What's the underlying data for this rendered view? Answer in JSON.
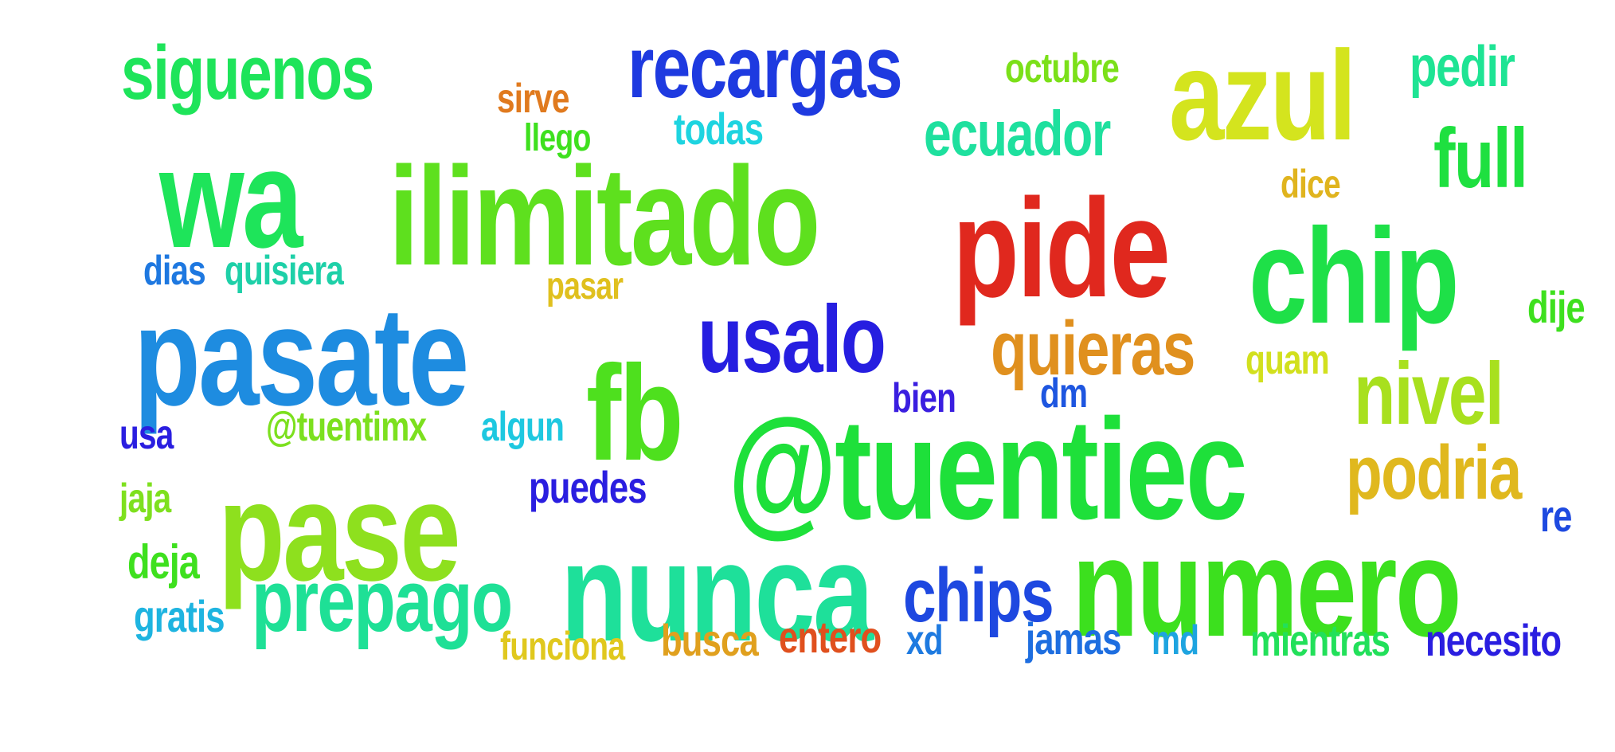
{
  "words": [
    {
      "id": "siguenos",
      "text": "siguenos",
      "color": "#1ee45a"
    },
    {
      "id": "recargas",
      "text": "recargas",
      "color": "#1e3ae0"
    },
    {
      "id": "octubre",
      "text": "octubre",
      "color": "#7be019"
    },
    {
      "id": "azul",
      "text": "azul",
      "color": "#d4e41e"
    },
    {
      "id": "pedir",
      "text": "pedir",
      "color": "#1ee494"
    },
    {
      "id": "sirve",
      "text": "sirve",
      "color": "#e07a1e"
    },
    {
      "id": "llego",
      "text": "llego",
      "color": "#3ee01e"
    },
    {
      "id": "todas",
      "text": "todas",
      "color": "#1ed4e0"
    },
    {
      "id": "ecuador",
      "text": "ecuador",
      "color": "#1ee09e"
    },
    {
      "id": "full",
      "text": "full",
      "color": "#1ee040"
    },
    {
      "id": "wa",
      "text": "wa",
      "color": "#1ee45a"
    },
    {
      "id": "ilimitado",
      "text": "ilimitado",
      "color": "#5ee01e"
    },
    {
      "id": "dice",
      "text": "dice",
      "color": "#e0b41e"
    },
    {
      "id": "pide",
      "text": "pide",
      "color": "#e0281e"
    },
    {
      "id": "chip",
      "text": "chip",
      "color": "#1ee048"
    },
    {
      "id": "dias",
      "text": "dias",
      "color": "#1e78e0"
    },
    {
      "id": "quisiera",
      "text": "quisiera",
      "color": "#1ed0a8"
    },
    {
      "id": "pasar",
      "text": "pasar",
      "color": "#e0c01e"
    },
    {
      "id": "dije",
      "text": "dije",
      "color": "#3ee01e"
    },
    {
      "id": "pasate",
      "text": "pasate",
      "color": "#1e8ce0"
    },
    {
      "id": "usalo",
      "text": "usalo",
      "color": "#261ee0"
    },
    {
      "id": "quieras",
      "text": "quieras",
      "color": "#e0901e"
    },
    {
      "id": "quam",
      "text": "quam",
      "color": "#d2e01e"
    },
    {
      "id": "nivel",
      "text": "nivel",
      "color": "#a8e01e"
    },
    {
      "id": "fb",
      "text": "fb",
      "color": "#4ee01e"
    },
    {
      "id": "bien",
      "text": "bien",
      "color": "#3a1ee0"
    },
    {
      "id": "dm",
      "text": "dm",
      "color": "#1e56e0"
    },
    {
      "id": "usa",
      "text": "usa",
      "color": "#2a1ee0"
    },
    {
      "id": "tuentimx",
      "text": "@tuentimx",
      "color": "#7ce01e"
    },
    {
      "id": "algun",
      "text": "algun",
      "color": "#1ec8e0"
    },
    {
      "id": "tuentiec",
      "text": "@tuentiec",
      "color": "#1ee03a"
    },
    {
      "id": "podria",
      "text": "podria",
      "color": "#e0b81e"
    },
    {
      "id": "jaja",
      "text": "jaja",
      "color": "#7ee01e"
    },
    {
      "id": "pase",
      "text": "pase",
      "color": "#8ee01e"
    },
    {
      "id": "puedes",
      "text": "puedes",
      "color": "#2a1ee0"
    },
    {
      "id": "re",
      "text": "re",
      "color": "#1e4ae0"
    },
    {
      "id": "deja",
      "text": "deja",
      "color": "#3ee01e"
    },
    {
      "id": "nunca",
      "text": "nunca",
      "color": "#1ee09a"
    },
    {
      "id": "numero",
      "text": "numero",
      "color": "#3ce01e"
    },
    {
      "id": "prepago",
      "text": "prepago",
      "color": "#1ee096"
    },
    {
      "id": "chips",
      "text": "chips",
      "color": "#1e48e0"
    },
    {
      "id": "gratis",
      "text": "gratis",
      "color": "#1eb4e0"
    },
    {
      "id": "funciona",
      "text": "funciona",
      "color": "#e0c81e"
    },
    {
      "id": "busca",
      "text": "busca",
      "color": "#e0a01e"
    },
    {
      "id": "entero",
      "text": "entero",
      "color": "#e0501e"
    },
    {
      "id": "xd",
      "text": "xd",
      "color": "#1e7ae0"
    },
    {
      "id": "jamas",
      "text": "jamas",
      "color": "#1e6ee0"
    },
    {
      "id": "md",
      "text": "md",
      "color": "#1ea4e0"
    },
    {
      "id": "mientras",
      "text": "mientras",
      "color": "#22e05a"
    },
    {
      "id": "necesito",
      "text": "necesito",
      "color": "#2a1ee0"
    }
  ]
}
